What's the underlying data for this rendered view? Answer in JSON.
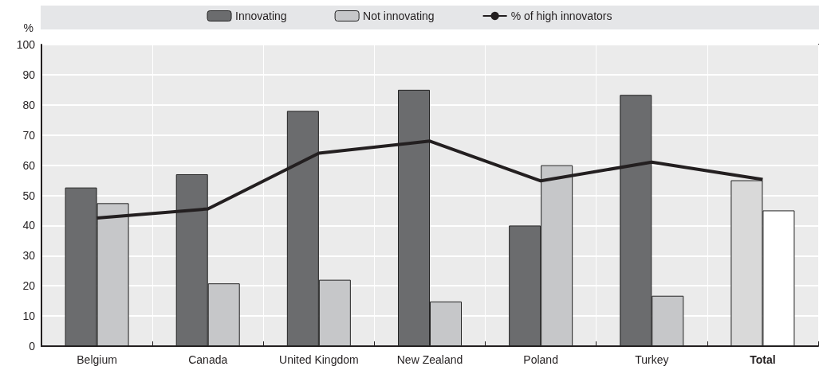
{
  "chart_data": {
    "type": "bar",
    "ylabel": "%",
    "categories": [
      "Belgium",
      "Canada",
      "United Kingdom",
      "New Zealand",
      "Poland",
      "Turkey",
      "Total"
    ],
    "series": [
      {
        "name": "Innovating",
        "color": "#6b6c6e",
        "colors": [
          "#6b6c6e",
          "#6b6c6e",
          "#6b6c6e",
          "#6b6c6e",
          "#6b6c6e",
          "#6b6c6e",
          "#d9d9d9"
        ],
        "values": [
          52.6,
          57,
          78,
          85,
          40,
          83.3,
          55
        ]
      },
      {
        "name": "Not innovating",
        "color": "#c6c7c9",
        "colors": [
          "#c6c7c9",
          "#c6c7c9",
          "#c6c7c9",
          "#c6c7c9",
          "#c6c7c9",
          "#c6c7c9",
          "#ffffff"
        ],
        "values": [
          47.4,
          20.8,
          22,
          14.8,
          60,
          16.7,
          45
        ]
      },
      {
        "name": "% of high innovators",
        "type": "line",
        "color": "#231f20",
        "values": [
          42.5,
          45.5,
          64,
          68,
          54.8,
          61,
          55.3
        ]
      }
    ],
    "ylim": [
      0,
      100
    ],
    "yticks": [
      0,
      10,
      20,
      30,
      40,
      50,
      60,
      70,
      80,
      90,
      100
    ],
    "grid": true,
    "legend": "top",
    "marker": "none",
    "line_style": "solid"
  }
}
